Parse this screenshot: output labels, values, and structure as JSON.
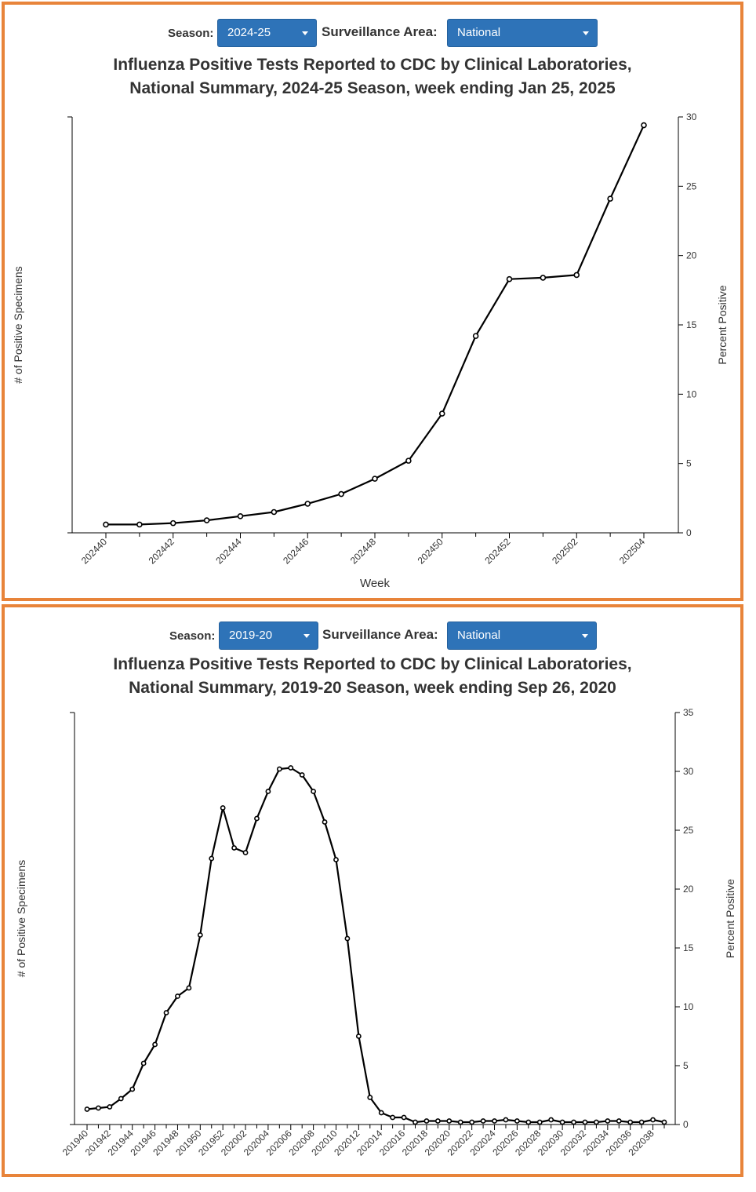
{
  "panels": [
    {
      "season_label": "Season:",
      "season_value": "2024-25",
      "area_label": "Surveillance Area:",
      "area_value": "National",
      "title_line1": "Influenza Positive Tests Reported to CDC by Clinical Laboratories,",
      "title_line2": "National Summary, 2024-25 Season, week ending Jan 25, 2025"
    },
    {
      "season_label": "Season:",
      "season_value": "2019-20",
      "area_label": "Surveillance Area:",
      "area_value": "National",
      "title_line1": "Influenza Positive Tests Reported to CDC by Clinical Laboratories,",
      "title_line2": "National Summary, 2019-20 Season, week ending Sep 26, 2020"
    }
  ],
  "chart_data": [
    {
      "type": "line",
      "title": "Influenza Positive Tests Reported to CDC by Clinical Laboratories, National Summary, 2024-25 Season, week ending Jan 25, 2025",
      "xlabel": "Week",
      "ylabel_left": "# of Positive Specimens",
      "ylabel_right": "Percent Positive",
      "ylim_right": [
        0,
        30
      ],
      "yticks_right": [
        "0",
        "5",
        "10",
        "15",
        "20",
        "25",
        "30"
      ],
      "x": [
        "202440",
        "202441",
        "202442",
        "202443",
        "202444",
        "202445",
        "202446",
        "202447",
        "202448",
        "202449",
        "202450",
        "202451",
        "202452",
        "202501",
        "202502",
        "202503",
        "202504"
      ],
      "xtick_labels": [
        "202440",
        "202442",
        "202444",
        "202446",
        "202448",
        "202450",
        "202452",
        "202502",
        "202504"
      ],
      "series": [
        {
          "values": [
            0.6,
            0.6,
            0.7,
            0.9,
            1.2,
            1.5,
            2.1,
            2.8,
            3.9,
            5.2,
            8.6,
            14.2,
            18.3,
            18.4,
            18.6,
            24.1,
            29.4
          ]
        }
      ]
    },
    {
      "type": "line",
      "title": "Influenza Positive Tests Reported to CDC by Clinical Laboratories, National Summary, 2019-20 Season, week ending Sep 26, 2020",
      "xlabel": "",
      "ylabel_left": "# of Positive Specimens",
      "ylabel_right": "Percent Positive",
      "ylim_right": [
        0,
        35
      ],
      "yticks_right": [
        "0",
        "5",
        "10",
        "15",
        "20",
        "25",
        "30",
        "35"
      ],
      "x": [
        "201940",
        "201941",
        "201942",
        "201943",
        "201944",
        "201945",
        "201946",
        "201947",
        "201948",
        "201949",
        "201950",
        "201951",
        "201952",
        "202001",
        "202002",
        "202003",
        "202004",
        "202005",
        "202006",
        "202007",
        "202008",
        "202009",
        "202010",
        "202011",
        "202012",
        "202013",
        "202014",
        "202015",
        "202016",
        "202017",
        "202018",
        "202019",
        "202020",
        "202021",
        "202022",
        "202023",
        "202024",
        "202025",
        "202026",
        "202027",
        "202028",
        "202029",
        "202030",
        "202031",
        "202032",
        "202033",
        "202034",
        "202035",
        "202036",
        "202037",
        "202038",
        "202039"
      ],
      "xtick_labels": [
        "201940",
        "201942",
        "201944",
        "201946",
        "201948",
        "201950",
        "201952",
        "202002",
        "202004",
        "202006",
        "202008",
        "202010",
        "202012",
        "202014",
        "202016",
        "202018",
        "202020",
        "202022",
        "202024",
        "202026",
        "202028",
        "202030",
        "202032",
        "202034",
        "202036",
        "202038"
      ],
      "series": [
        {
          "values": [
            1.3,
            1.4,
            1.5,
            2.2,
            3.0,
            5.2,
            6.8,
            9.5,
            10.9,
            11.6,
            16.1,
            22.6,
            26.9,
            23.5,
            23.1,
            26.0,
            28.3,
            30.2,
            30.3,
            29.7,
            28.3,
            25.7,
            22.5,
            15.8,
            7.5,
            2.3,
            1.0,
            0.6,
            0.6,
            0.2,
            0.3,
            0.3,
            0.3,
            0.2,
            0.2,
            0.3,
            0.3,
            0.4,
            0.3,
            0.2,
            0.2,
            0.4,
            0.2,
            0.2,
            0.2,
            0.2,
            0.3,
            0.3,
            0.2,
            0.2,
            0.4,
            0.2
          ]
        }
      ]
    }
  ]
}
